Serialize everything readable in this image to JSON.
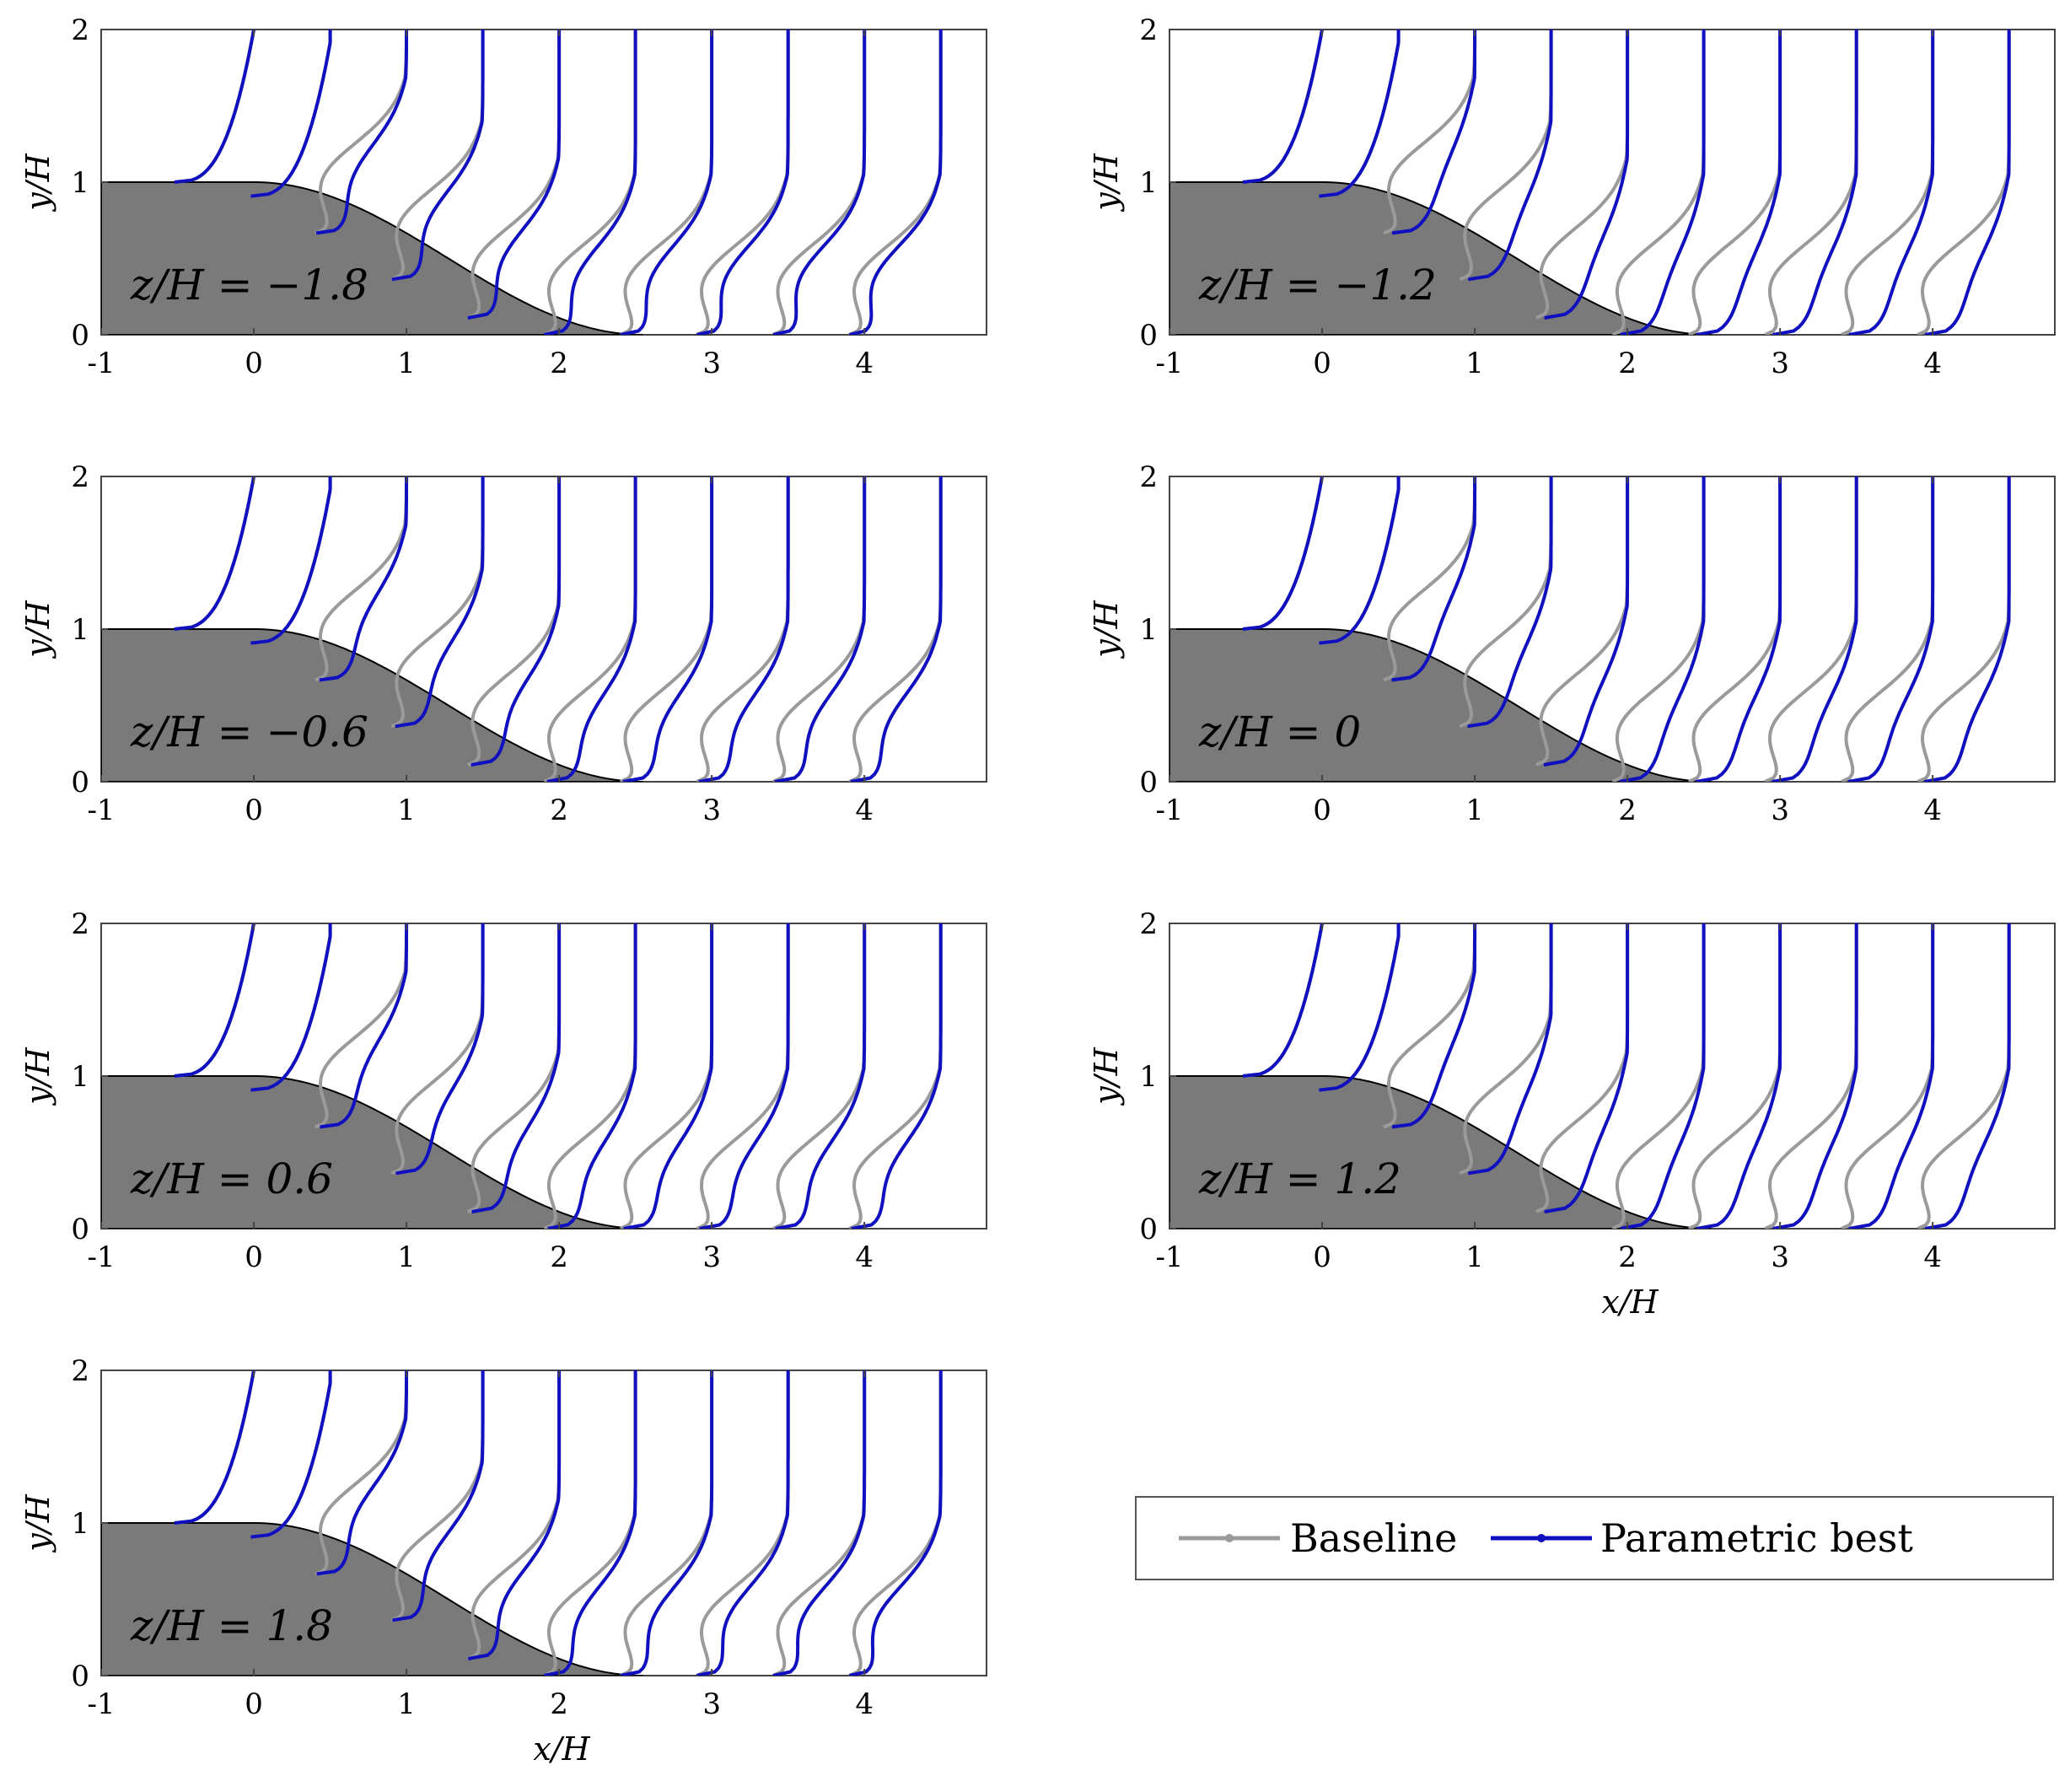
{
  "legend": {
    "items": [
      {
        "label": "Baseline",
        "color": "#9a9a9a"
      },
      {
        "label": "Parametric best",
        "color": "#1010c0"
      }
    ]
  },
  "chart_data": [
    {
      "type": "line",
      "panel_label": "z/H = −1.8",
      "xlabel": "",
      "ylabel": "y/H",
      "xlim": [
        -1,
        4.8
      ],
      "ylim": [
        0,
        2
      ],
      "xticks": [
        -1,
        0,
        1,
        2,
        3,
        4
      ],
      "yticks": [
        0,
        1,
        2
      ],
      "profile_stations_x": [
        0,
        0.5,
        1,
        1.5,
        2,
        2.5,
        3,
        3.5,
        4,
        4.5
      ],
      "series": [
        {
          "name": "Baseline",
          "color": "#9a9a9a",
          "bubble_scale": 1.0
        },
        {
          "name": "Parametric best",
          "color": "#1010c0",
          "bubble_scale": 1.0
        }
      ]
    },
    {
      "type": "line",
      "panel_label": "z/H = −1.2",
      "xlabel": "",
      "ylabel": "y/H",
      "xlim": [
        -1,
        4.8
      ],
      "ylim": [
        0,
        2
      ],
      "xticks": [
        -1,
        0,
        1,
        2,
        3,
        4
      ],
      "yticks": [
        0,
        1,
        2
      ],
      "profile_stations_x": [
        0,
        0.5,
        1,
        1.5,
        2,
        2.5,
        3,
        3.5,
        4,
        4.5
      ],
      "series": [
        {
          "name": "Baseline",
          "color": "#9a9a9a",
          "bubble_scale": 1.0
        },
        {
          "name": "Parametric best",
          "color": "#1010c0",
          "bubble_scale": 0.3
        }
      ]
    },
    {
      "type": "line",
      "panel_label": "z/H = −0.6",
      "xlabel": "",
      "ylabel": "y/H",
      "xlim": [
        -1,
        4.8
      ],
      "ylim": [
        0,
        2
      ],
      "xticks": [
        -1,
        0,
        1,
        2,
        3,
        4
      ],
      "yticks": [
        0,
        1,
        2
      ],
      "profile_stations_x": [
        0,
        0.5,
        1,
        1.5,
        2,
        2.5,
        3,
        3.5,
        4,
        4.5
      ],
      "series": [
        {
          "name": "Baseline",
          "color": "#9a9a9a",
          "bubble_scale": 1.0
        },
        {
          "name": "Parametric best",
          "color": "#1010c0",
          "bubble_scale": 0.7
        }
      ]
    },
    {
      "type": "line",
      "panel_label": "z/H = 0",
      "xlabel": "",
      "ylabel": "y/H",
      "xlim": [
        -1,
        4.8
      ],
      "ylim": [
        0,
        2
      ],
      "xticks": [
        -1,
        0,
        1,
        2,
        3,
        4
      ],
      "yticks": [
        0,
        1,
        2
      ],
      "profile_stations_x": [
        0,
        0.5,
        1,
        1.5,
        2,
        2.5,
        3,
        3.5,
        4,
        4.5
      ],
      "series": [
        {
          "name": "Baseline",
          "color": "#9a9a9a",
          "bubble_scale": 1.0
        },
        {
          "name": "Parametric best",
          "color": "#1010c0",
          "bubble_scale": 0.35
        }
      ]
    },
    {
      "type": "line",
      "panel_label": "z/H = 0.6",
      "xlabel": "",
      "ylabel": "y/H",
      "xlim": [
        -1,
        4.8
      ],
      "ylim": [
        0,
        2
      ],
      "xticks": [
        -1,
        0,
        1,
        2,
        3,
        4
      ],
      "yticks": [
        0,
        1,
        2
      ],
      "profile_stations_x": [
        0,
        0.5,
        1,
        1.5,
        2,
        2.5,
        3,
        3.5,
        4,
        4.5
      ],
      "series": [
        {
          "name": "Baseline",
          "color": "#9a9a9a",
          "bubble_scale": 1.0
        },
        {
          "name": "Parametric best",
          "color": "#1010c0",
          "bubble_scale": 0.65
        }
      ]
    },
    {
      "type": "line",
      "panel_label": "z/H = 1.2",
      "xlabel": "x/H",
      "ylabel": "y/H",
      "xlim": [
        -1,
        4.8
      ],
      "ylim": [
        0,
        2
      ],
      "xticks": [
        -1,
        0,
        1,
        2,
        3,
        4
      ],
      "yticks": [
        0,
        1,
        2
      ],
      "profile_stations_x": [
        0,
        0.5,
        1,
        1.5,
        2,
        2.5,
        3,
        3.5,
        4,
        4.5
      ],
      "series": [
        {
          "name": "Baseline",
          "color": "#9a9a9a",
          "bubble_scale": 1.0
        },
        {
          "name": "Parametric best",
          "color": "#1010c0",
          "bubble_scale": 0.3
        }
      ]
    },
    {
      "type": "line",
      "panel_label": "z/H = 1.8",
      "xlabel": "x/H",
      "ylabel": "y/H",
      "xlim": [
        -1,
        4.8
      ],
      "ylim": [
        0,
        2
      ],
      "xticks": [
        -1,
        0,
        1,
        2,
        3,
        4
      ],
      "yticks": [
        0,
        1,
        2
      ],
      "profile_stations_x": [
        0,
        0.5,
        1,
        1.5,
        2,
        2.5,
        3,
        3.5,
        4,
        4.5
      ],
      "series": [
        {
          "name": "Baseline",
          "color": "#9a9a9a",
          "bubble_scale": 1.0
        },
        {
          "name": "Parametric best",
          "color": "#1010c0",
          "bubble_scale": 0.95
        }
      ]
    }
  ]
}
